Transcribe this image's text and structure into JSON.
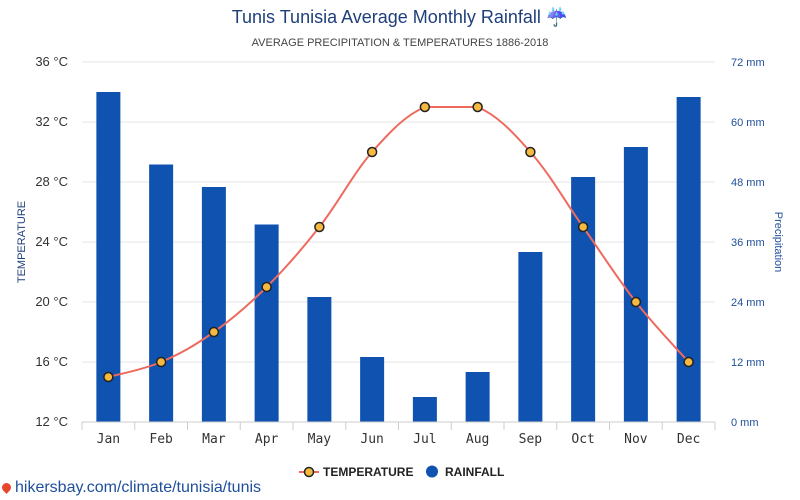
{
  "chart_data": {
    "type": "bar",
    "title": "Tunis Tunisia Average Monthly Rainfall ☔",
    "subtitle": "AVERAGE PRECIPITATION & TEMPERATURES 1886-2018",
    "categories": [
      "Jan",
      "Feb",
      "Mar",
      "Apr",
      "May",
      "Jun",
      "Jul",
      "Aug",
      "Sep",
      "Oct",
      "Nov",
      "Dec"
    ],
    "y_left": {
      "label": "TEMPERATURE",
      "min": 12,
      "max": 36,
      "ticks": [
        12,
        16,
        20,
        24,
        28,
        32,
        36
      ],
      "tick_labels": [
        "12 °C",
        "16 °C",
        "20 °C",
        "24 °C",
        "28 °C",
        "32 °C",
        "36 °C"
      ]
    },
    "y_right": {
      "label": "Precipitation",
      "min": 0,
      "max": 72,
      "ticks": [
        0,
        12,
        24,
        36,
        48,
        60,
        72
      ],
      "tick_labels": [
        "0 mm",
        "12 mm",
        "24 mm",
        "36 mm",
        "48 mm",
        "60 mm",
        "72 mm"
      ]
    },
    "series": [
      {
        "name": "RAINFALL",
        "kind": "bar",
        "axis": "right",
        "color": "#0f52b0",
        "values": [
          66,
          51.5,
          47,
          39.5,
          25,
          13,
          5,
          10,
          34,
          49,
          55,
          65
        ]
      },
      {
        "name": "TEMPERATURE",
        "kind": "line",
        "axis": "left",
        "color": "#ee6a5f",
        "marker_fill": "#f5b942",
        "values": [
          15,
          16,
          18,
          21,
          25,
          30,
          33,
          33,
          30,
          25,
          20,
          16
        ]
      }
    ],
    "legend_position": "bottom-center",
    "grid": true
  },
  "footer": {
    "source_text": "hikersbay.com/climate/tunisia/tunis",
    "icon": "map-pin-icon"
  }
}
